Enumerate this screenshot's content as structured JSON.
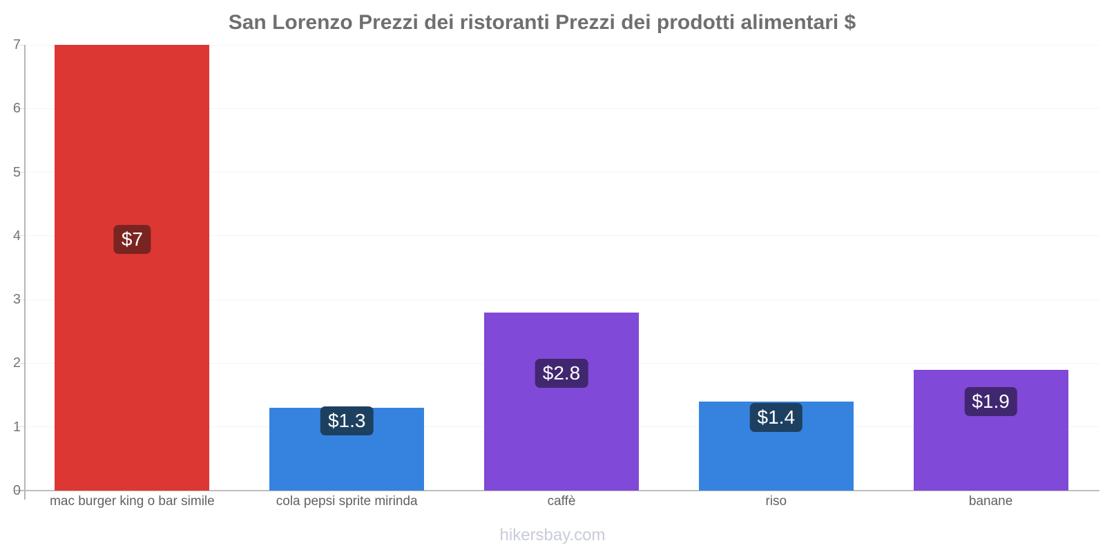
{
  "title": "San Lorenzo Prezzi dei ristoranti Prezzi dei prodotti alimentari $",
  "footer": "hikersbay.com",
  "chart_data": {
    "type": "bar",
    "title": "San Lorenzo Prezzi dei ristoranti Prezzi dei prodotti alimentari $",
    "categories": [
      "mac burger king o bar simile",
      "cola pepsi sprite mirinda",
      "caffè",
      "riso",
      "banane"
    ],
    "values": [
      7,
      1.3,
      2.8,
      1.4,
      1.9
    ],
    "value_labels": [
      "$7",
      "$1.3",
      "$2.8",
      "$1.4",
      "$1.9"
    ],
    "bar_colors": [
      "#dd3733",
      "#3583df",
      "#8049d7",
      "#3583df",
      "#8049d7"
    ],
    "label_bg_colors": [
      "#7a2422",
      "#1e4060",
      "#412770",
      "#1e4060",
      "#412770"
    ],
    "currency": "$",
    "xlabel": "",
    "ylabel": "",
    "ylim": [
      0,
      7
    ],
    "yticks": [
      0,
      1,
      2,
      3,
      4,
      5,
      6,
      7
    ],
    "grid": "horizontal-faint",
    "legend": "none"
  }
}
